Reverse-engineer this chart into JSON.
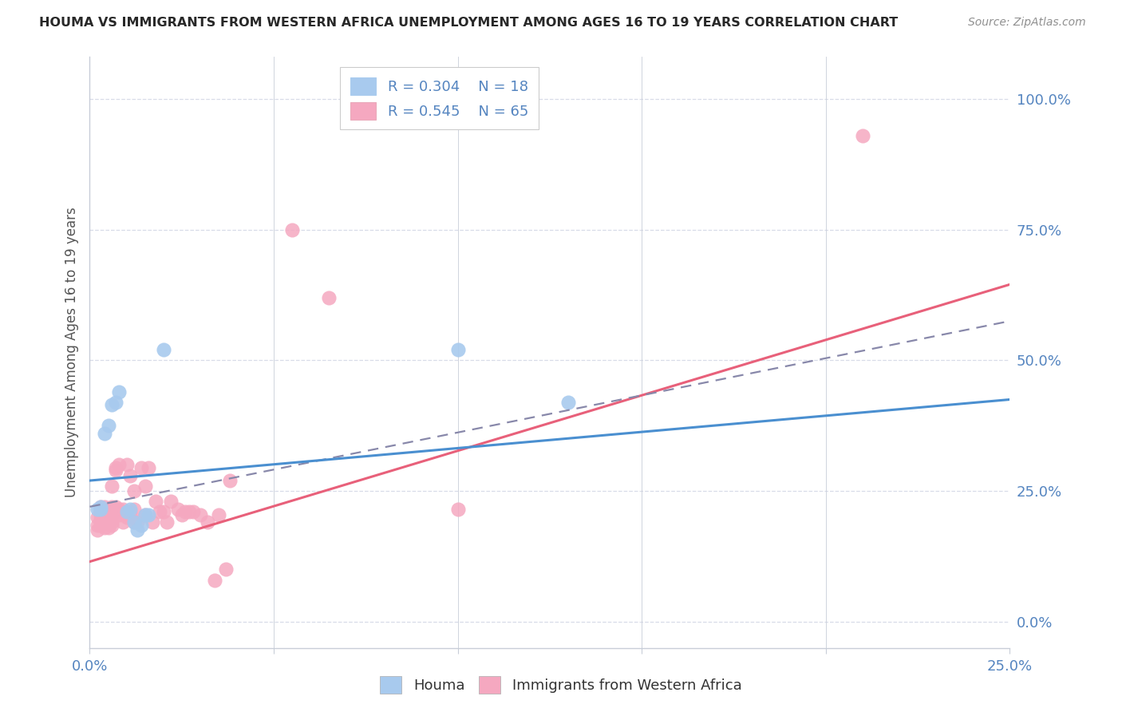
{
  "title": "HOUMA VS IMMIGRANTS FROM WESTERN AFRICA UNEMPLOYMENT AMONG AGES 16 TO 19 YEARS CORRELATION CHART",
  "source": "Source: ZipAtlas.com",
  "ylabel": "Unemployment Among Ages 16 to 19 years",
  "ytick_labels": [
    "0.0%",
    "25.0%",
    "50.0%",
    "75.0%",
    "100.0%"
  ],
  "ytick_vals": [
    0.0,
    0.25,
    0.5,
    0.75,
    1.0
  ],
  "xlim": [
    0.0,
    0.25
  ],
  "ylim": [
    -0.05,
    1.08
  ],
  "xtick_positions": [
    0.0,
    0.05,
    0.1,
    0.15,
    0.2,
    0.25
  ],
  "xtick_labels": [
    "0.0%",
    "",
    "",
    "",
    "",
    "25.0%"
  ],
  "legend_label1": "Houma",
  "legend_label2": "Immigrants from Western Africa",
  "r1": "0.304",
  "n1": "18",
  "r2": "0.545",
  "n2": "65",
  "color_blue_fill": "#A8CAEE",
  "color_pink_fill": "#F5A8C0",
  "color_blue_line": "#4A8FD0",
  "color_pink_line": "#E8607A",
  "color_dash_line": "#8888AA",
  "color_axis": "#C8CDD8",
  "color_grid": "#D8DCE8",
  "color_tick_label": "#5585C0",
  "color_title": "#282828",
  "color_source": "#909090",
  "color_ylabel": "#555555",
  "blue_line_x0": 0.0,
  "blue_line_y0": 0.27,
  "blue_line_x1": 0.25,
  "blue_line_y1": 0.425,
  "pink_line_x0": 0.0,
  "pink_line_y0": 0.115,
  "pink_line_x1": 0.25,
  "pink_line_y1": 0.645,
  "dash_line_x0": 0.0,
  "dash_line_y0": 0.22,
  "dash_line_x1": 0.25,
  "dash_line_y1": 0.575,
  "houma_x": [
    0.002,
    0.003,
    0.003,
    0.004,
    0.005,
    0.006,
    0.007,
    0.008,
    0.01,
    0.011,
    0.012,
    0.013,
    0.014,
    0.015,
    0.016,
    0.02,
    0.1,
    0.13
  ],
  "houma_y": [
    0.215,
    0.215,
    0.22,
    0.36,
    0.375,
    0.415,
    0.42,
    0.44,
    0.21,
    0.215,
    0.19,
    0.175,
    0.185,
    0.205,
    0.205,
    0.52,
    0.52,
    0.42
  ],
  "immigrants_x": [
    0.002,
    0.002,
    0.002,
    0.003,
    0.003,
    0.003,
    0.003,
    0.003,
    0.003,
    0.004,
    0.004,
    0.004,
    0.004,
    0.005,
    0.005,
    0.005,
    0.005,
    0.006,
    0.006,
    0.006,
    0.006,
    0.006,
    0.007,
    0.007,
    0.007,
    0.007,
    0.008,
    0.008,
    0.008,
    0.009,
    0.009,
    0.01,
    0.01,
    0.01,
    0.011,
    0.011,
    0.012,
    0.012,
    0.012,
    0.013,
    0.014,
    0.015,
    0.015,
    0.016,
    0.017,
    0.018,
    0.019,
    0.02,
    0.021,
    0.022,
    0.024,
    0.025,
    0.026,
    0.027,
    0.028,
    0.03,
    0.032,
    0.034,
    0.035,
    0.037,
    0.038,
    0.055,
    0.065,
    0.1,
    0.21
  ],
  "immigrants_y": [
    0.175,
    0.185,
    0.2,
    0.185,
    0.195,
    0.205,
    0.21,
    0.215,
    0.22,
    0.18,
    0.19,
    0.215,
    0.22,
    0.18,
    0.19,
    0.21,
    0.215,
    0.185,
    0.19,
    0.21,
    0.22,
    0.26,
    0.21,
    0.22,
    0.29,
    0.295,
    0.205,
    0.215,
    0.3,
    0.19,
    0.215,
    0.2,
    0.205,
    0.3,
    0.21,
    0.28,
    0.19,
    0.215,
    0.25,
    0.19,
    0.295,
    0.205,
    0.26,
    0.295,
    0.19,
    0.23,
    0.21,
    0.21,
    0.19,
    0.23,
    0.215,
    0.205,
    0.21,
    0.21,
    0.21,
    0.205,
    0.19,
    0.08,
    0.205,
    0.1,
    0.27,
    0.75,
    0.62,
    0.215,
    0.93
  ]
}
